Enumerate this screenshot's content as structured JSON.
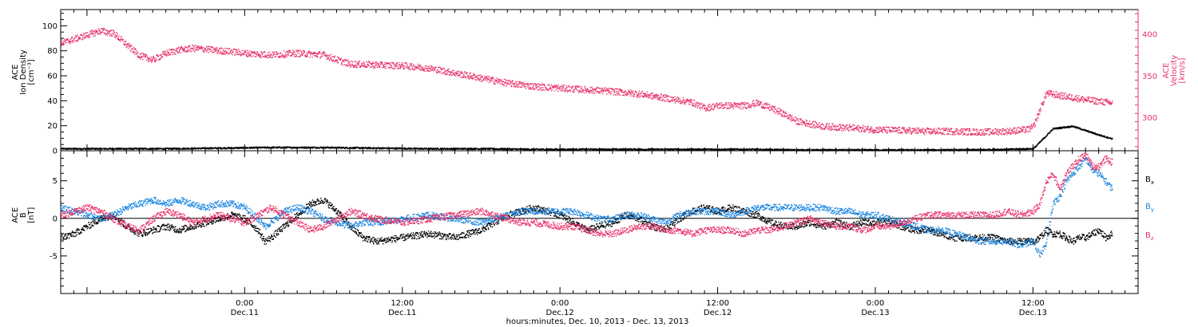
{
  "colors": {
    "density": "#000000",
    "velocity": "#e8336a",
    "bx": "#000000",
    "by": "#1a85e0",
    "bz": "#e8336a",
    "axis": "#000000"
  },
  "chart_data": [
    {
      "type": "scatter",
      "panel": "plasma",
      "ylabel": [
        "ACE",
        "Ion Density",
        "[cm⁻³]"
      ],
      "ylim": [
        0,
        113
      ],
      "yticks": [
        0,
        20,
        40,
        60,
        80,
        100
      ],
      "y2label": [
        "ACE",
        "Velocity",
        "[km/s]"
      ],
      "y2lim": [
        260,
        430
      ],
      "y2ticks": [
        300,
        350,
        400
      ],
      "xlim_hours": [
        -14.0,
        68.0
      ],
      "series": [
        {
          "key": "density",
          "x": [
            -14,
            -10,
            -6,
            -2,
            2,
            6,
            10,
            14,
            18,
            22,
            26,
            30,
            34,
            38,
            42,
            46,
            50,
            54,
            58,
            60,
            61.5,
            63,
            65,
            66
          ],
          "y": [
            2,
            2,
            2,
            2.5,
            3,
            3,
            2.5,
            2,
            2,
            1.5,
            1.5,
            1.5,
            1.5,
            1.5,
            1,
            1,
            1,
            1,
            1.5,
            2,
            18,
            20,
            13,
            10
          ]
        },
        {
          "key": "velocity",
          "x": [
            -14,
            -12,
            -11,
            -10,
            -9,
            -8,
            -7,
            -6,
            -5,
            -4,
            -3,
            -2,
            -1,
            0,
            2,
            4,
            6,
            7,
            8,
            10,
            12,
            14,
            16,
            18,
            20,
            22,
            24,
            26,
            28,
            30,
            32,
            34,
            35,
            36,
            38,
            39,
            40,
            41,
            42,
            44,
            46,
            48,
            50,
            52,
            54,
            56,
            58,
            59.5,
            60,
            61,
            62,
            64,
            66
          ],
          "y": [
            390,
            400,
            405,
            402,
            388,
            375,
            370,
            378,
            382,
            384,
            383,
            381,
            380,
            378,
            376,
            378,
            376,
            370,
            365,
            364,
            363,
            360,
            354,
            348,
            342,
            338,
            336,
            334,
            332,
            329,
            324,
            319,
            312,
            315,
            315,
            318,
            312,
            305,
            296,
            290,
            288,
            286,
            285,
            284,
            284,
            283,
            284,
            286,
            289,
            330,
            327,
            322,
            318
          ]
        }
      ]
    },
    {
      "type": "scatter",
      "panel": "magnetic",
      "ylabel": [
        "ACE",
        "B",
        "[nT]"
      ],
      "ylim": [
        -10,
        9
      ],
      "yticks": [
        -5,
        0,
        5
      ],
      "xlim_hours": [
        -14.0,
        68.0
      ],
      "xticks": [
        {
          "hours": 0,
          "time": "0:00",
          "day": "Dec.11"
        },
        {
          "hours": 12,
          "time": "12:00",
          "day": "Dec.11"
        },
        {
          "hours": 24,
          "time": "0:00",
          "day": "Dec.12"
        },
        {
          "hours": 36,
          "time": "12:00",
          "day": "Dec.12"
        },
        {
          "hours": 48,
          "time": "0:00",
          "day": "Dec.13"
        },
        {
          "hours": 60,
          "time": "12:00",
          "day": "Dec.13"
        }
      ],
      "xlabel": "hours:minutes, Dec. 10, 2013 - Dec. 13, 2013",
      "series": [
        {
          "key": "bx",
          "name": "B",
          "subscript": "x",
          "x": [
            -14,
            -13,
            -12,
            -11,
            -10,
            -9,
            -8,
            -7,
            -6,
            -5,
            -4,
            -3,
            -2,
            -1,
            0,
            1,
            1.5,
            2,
            3,
            4,
            5,
            6,
            7,
            8,
            9,
            10,
            12,
            14,
            16,
            18,
            19,
            20,
            21,
            22,
            24,
            25,
            26,
            27,
            28,
            29,
            30,
            31,
            32,
            33,
            34,
            35,
            36,
            37,
            38,
            39,
            40,
            41,
            42,
            43,
            44,
            45,
            46,
            47,
            48,
            49,
            50,
            51,
            52,
            53,
            54,
            55,
            56,
            57,
            58,
            59,
            60,
            60.5,
            61,
            61.5,
            62,
            62.5,
            63,
            63.5,
            64,
            64.5,
            65,
            65.5,
            66
          ],
          "y": [
            -2.5,
            -2,
            -1,
            0,
            0.5,
            -1,
            -2,
            -1.5,
            -1,
            -1.5,
            -1,
            -0.5,
            0,
            0.5,
            0,
            -1.5,
            -3,
            -2.5,
            -1,
            0.5,
            2,
            2.5,
            1,
            -1,
            -2.5,
            -3,
            -2.5,
            -2,
            -2.5,
            -1.5,
            -0.5,
            0.5,
            1,
            1.5,
            0.5,
            -0.5,
            -1.5,
            -1,
            -0.5,
            0.5,
            0,
            -1,
            -1.5,
            0,
            1,
            1.5,
            1,
            1.5,
            1,
            0.5,
            -0.5,
            -1,
            -1,
            -0.5,
            -1,
            -0.5,
            -1,
            -0.5,
            -0.5,
            -0.5,
            -1,
            -1.5,
            -1.5,
            -2,
            -2.5,
            -2.5,
            -2.5,
            -2.5,
            -3,
            -3,
            -3,
            -2.5,
            -1.5,
            -2,
            -2,
            -2.5,
            -3,
            -2.5,
            -2.5,
            -2,
            -1.5,
            -2.5,
            -2
          ]
        },
        {
          "key": "by",
          "name": "B",
          "subscript": "y",
          "x": [
            -14,
            -13,
            -12,
            -11,
            -10,
            -9,
            -8,
            -7,
            -6,
            -5,
            -4,
            -3,
            -2,
            -1,
            0,
            1,
            1.5,
            2,
            3,
            4,
            5,
            6,
            7,
            8,
            9,
            10,
            12,
            14,
            16,
            18,
            19,
            20,
            21,
            22,
            24,
            25,
            26,
            27,
            28,
            29,
            30,
            31,
            32,
            33,
            34,
            35,
            36,
            37,
            38,
            39,
            40,
            41,
            42,
            43,
            44,
            45,
            46,
            47,
            48,
            49,
            50,
            51,
            52,
            53,
            54,
            55,
            56,
            57,
            58,
            59,
            60,
            60.5,
            61,
            61.5,
            62,
            62.5,
            63,
            63.5,
            64,
            64.5,
            65,
            65.5,
            66
          ],
          "y": [
            1.5,
            1,
            0.5,
            0,
            0.5,
            1.5,
            2,
            2.5,
            2,
            2.5,
            2,
            1.5,
            2,
            2,
            1.5,
            0,
            -1,
            -0.5,
            1,
            1.5,
            1,
            0,
            -0.5,
            -1,
            -0.5,
            -0.5,
            0,
            0.5,
            0,
            -0.5,
            0,
            0.5,
            1,
            1,
            1,
            1,
            0.5,
            0,
            0,
            0.5,
            0.5,
            0,
            -0.5,
            0.5,
            1,
            1,
            1,
            0.5,
            1,
            1.5,
            1.5,
            1.5,
            1.5,
            1.5,
            1.5,
            1,
            1,
            0.5,
            0.5,
            0,
            -0.5,
            -1,
            -1.5,
            -1.5,
            -2,
            -2.5,
            -3,
            -3,
            -3,
            -3.5,
            -3,
            -5,
            -3,
            2,
            3,
            5,
            6,
            7,
            8,
            6.5,
            6,
            5,
            4
          ]
        },
        {
          "key": "bz",
          "name": "B",
          "subscript": "z",
          "x": [
            -14,
            -13,
            -12,
            -11,
            -10,
            -9,
            -8,
            -7,
            -6,
            -5,
            -4,
            -3,
            -2,
            -1,
            0,
            1,
            1.5,
            2,
            3,
            4,
            5,
            6,
            7,
            8,
            9,
            10,
            12,
            14,
            16,
            18,
            19,
            20,
            21,
            22,
            24,
            25,
            26,
            27,
            28,
            29,
            30,
            31,
            32,
            33,
            34,
            35,
            36,
            37,
            38,
            39,
            40,
            41,
            42,
            43,
            44,
            45,
            46,
            47,
            48,
            49,
            50,
            51,
            52,
            53,
            54,
            55,
            56,
            57,
            58,
            59,
            60,
            60.5,
            61,
            61.5,
            62,
            62.5,
            63,
            63.5,
            64,
            64.5,
            65,
            65.5,
            66
          ],
          "y": [
            0.5,
            1,
            1.5,
            1,
            0,
            -1,
            -1.5,
            0,
            1,
            0.5,
            -0.5,
            0,
            0.5,
            0,
            -0.5,
            0.5,
            1,
            1.5,
            0.5,
            -0.5,
            -1.5,
            -1,
            0,
            1,
            0.5,
            0,
            -0.5,
            0,
            0.5,
            1,
            0.5,
            0,
            -0.5,
            -0.5,
            -1,
            -1,
            -1.5,
            -2,
            -2,
            -1.5,
            -1,
            -1,
            -1.5,
            -1.5,
            -2,
            -1.5,
            -1.5,
            -1.5,
            -2,
            -1.5,
            -1.5,
            -1,
            -0.5,
            0,
            -0.5,
            -1,
            -1,
            -1.5,
            -1,
            -1,
            -0.5,
            0,
            0.5,
            0.5,
            0.5,
            0.5,
            0.5,
            0.5,
            1,
            0.5,
            1,
            2,
            5,
            6,
            4,
            6,
            7,
            8,
            8.5,
            7,
            7,
            8,
            7.5
          ]
        }
      ]
    }
  ]
}
